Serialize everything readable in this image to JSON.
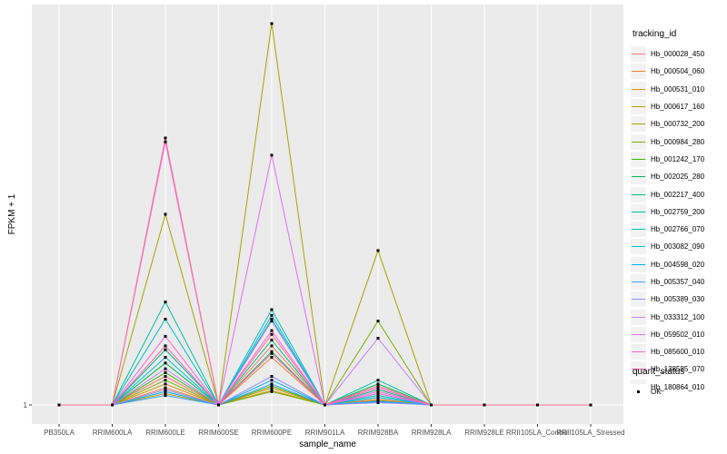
{
  "chart_data": {
    "type": "line",
    "xlabel": "sample_name",
    "ylabel": "FPKM + 1",
    "y_ticks": [
      {
        "label": "1",
        "value": 0
      }
    ],
    "x": [
      "PB350LA",
      "RRIM600LA",
      "RRIM600LE",
      "RRIM600SE",
      "RRIM600PE",
      "RRIM901LA",
      "RRIM928BA",
      "RRIM928LA",
      "RRIM928LE",
      "RRII105LA_Control",
      "RRII105LA_Stressed"
    ],
    "ylim": [
      -0.05,
      1.05
    ],
    "grid": true,
    "legend_position": "right",
    "legend_title": "tracking_id",
    "legend2_title": "quant_status",
    "legend2_entries": [
      "OK"
    ],
    "series": [
      {
        "name": "Hb_000028_450",
        "color": "#F8766D",
        "values": [
          0,
          0,
          0.075,
          0,
          0.155,
          0,
          0.02,
          0,
          0,
          0,
          0
        ]
      },
      {
        "name": "Hb_000504_060",
        "color": "#EA8331",
        "values": [
          0,
          0,
          0.045,
          0,
          0.125,
          0,
          0.015,
          0,
          0,
          0,
          0
        ]
      },
      {
        "name": "Hb_000531_010",
        "color": "#D89000",
        "values": [
          0,
          0,
          0.055,
          0,
          0.045,
          0,
          0.012,
          0,
          0,
          0,
          0
        ]
      },
      {
        "name": "Hb_000617_160",
        "color": "#C09B00",
        "values": [
          0,
          0,
          0.03,
          0,
          0.038,
          0,
          0.01,
          0,
          0,
          0,
          0
        ]
      },
      {
        "name": "Hb_000732_200",
        "color": "#A3A500",
        "values": [
          0,
          0,
          0.5,
          0,
          1.0,
          0,
          0.405,
          0,
          0,
          0,
          0
        ]
      },
      {
        "name": "Hb_000984_280",
        "color": "#7CAE00",
        "values": [
          0,
          0,
          0.065,
          0,
          0.035,
          0,
          0.22,
          0,
          0,
          0,
          0
        ]
      },
      {
        "name": "Hb_001242_170",
        "color": "#39B600",
        "values": [
          0,
          0,
          0.085,
          0,
          0.05,
          0,
          0.03,
          0,
          0,
          0,
          0
        ]
      },
      {
        "name": "Hb_002025_280",
        "color": "#00BB4E",
        "values": [
          0,
          0,
          0.11,
          0,
          0.14,
          0,
          0.055,
          0,
          0,
          0,
          0
        ]
      },
      {
        "name": "Hb_002217_400",
        "color": "#00BF7D",
        "values": [
          0,
          0,
          0.145,
          0,
          0.17,
          0,
          0.04,
          0,
          0,
          0,
          0
        ]
      },
      {
        "name": "Hb_002759_200",
        "color": "#00C1A3",
        "values": [
          0,
          0,
          0.27,
          0,
          0.225,
          0,
          0.065,
          0,
          0,
          0,
          0
        ]
      },
      {
        "name": "Hb_002766_070",
        "color": "#00BFC4",
        "values": [
          0,
          0,
          0.225,
          0,
          0.25,
          0,
          0.025,
          0,
          0,
          0,
          0
        ]
      },
      {
        "name": "Hb_003082_090",
        "color": "#00BAE0",
        "values": [
          0,
          0,
          0.125,
          0,
          0.235,
          0,
          0.02,
          0,
          0,
          0,
          0
        ]
      },
      {
        "name": "Hb_004598_020",
        "color": "#00B0F6",
        "values": [
          0,
          0,
          0.035,
          0,
          0.065,
          0,
          0.01,
          0,
          0,
          0,
          0
        ]
      },
      {
        "name": "Hb_005357_040",
        "color": "#35A2FF",
        "values": [
          0,
          0,
          0.025,
          0,
          0.055,
          0,
          0.008,
          0,
          0,
          0,
          0
        ]
      },
      {
        "name": "Hb_005389_030",
        "color": "#9590FF",
        "values": [
          0,
          0,
          0.04,
          0,
          0.075,
          0,
          0.006,
          0,
          0,
          0,
          0
        ]
      },
      {
        "name": "Hb_033312_100",
        "color": "#C77CFF",
        "values": [
          0,
          0,
          0.095,
          0,
          0.22,
          0,
          0.175,
          0,
          0,
          0,
          0
        ]
      },
      {
        "name": "Hb_059502_010",
        "color": "#E76BF3",
        "values": [
          0,
          0,
          0.69,
          0,
          0.655,
          0,
          0.03,
          0,
          0,
          0,
          0
        ]
      },
      {
        "name": "Hb_085600_010",
        "color": "#FA62DB",
        "values": [
          0,
          0,
          0.18,
          0,
          0.195,
          0,
          0.035,
          0,
          0,
          0,
          0
        ]
      },
      {
        "name": "Hb_138585_070",
        "color": "#FF62BC",
        "values": [
          0,
          0,
          0.155,
          0,
          0.135,
          0,
          0.045,
          0,
          0,
          0,
          0
        ]
      },
      {
        "name": "Hb_180864_010",
        "color": "#FF6C91",
        "values": [
          0,
          0,
          0.7,
          0,
          0.185,
          0,
          0.05,
          0,
          0,
          0,
          0
        ]
      }
    ]
  }
}
